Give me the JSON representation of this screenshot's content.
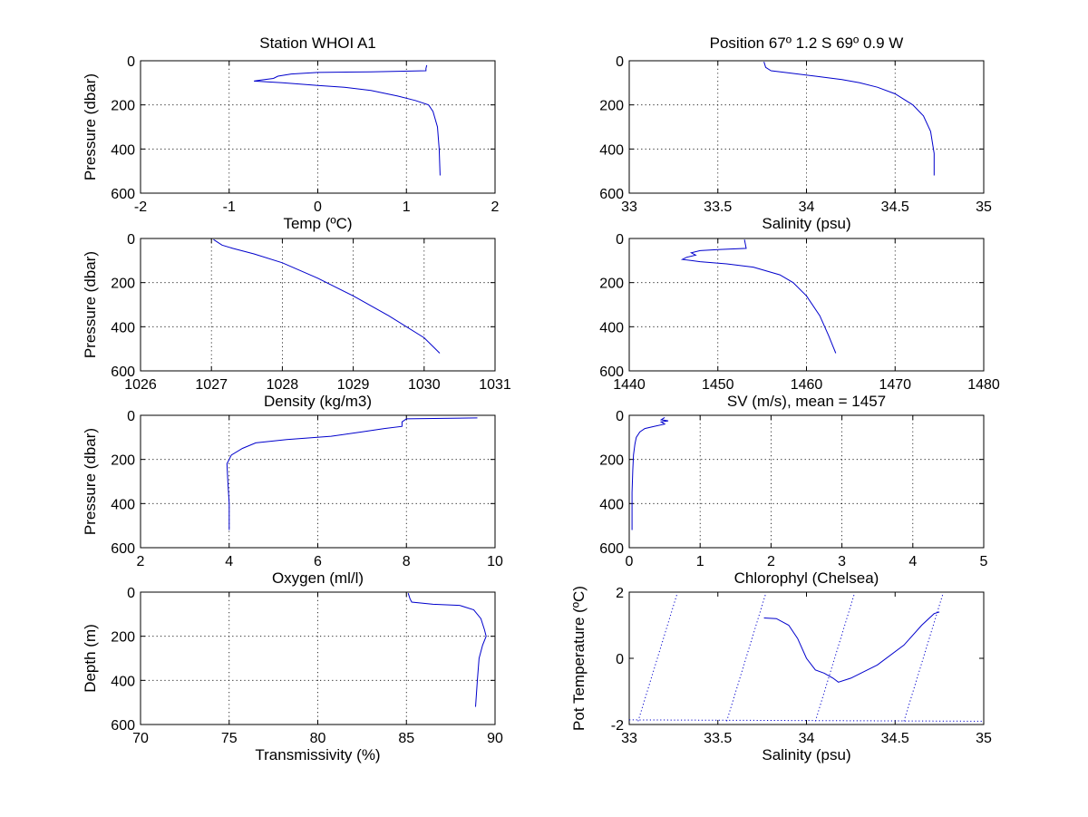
{
  "series_color": "#0000cc",
  "chart_data": [
    {
      "type": "line",
      "title": "Station  WHOI A1",
      "xlabel": "Temp (ºC)",
      "ylabel": "Pressure (dbar)",
      "xlim": [
        -2,
        2
      ],
      "ylim": [
        0,
        600
      ],
      "y_reversed": true,
      "grid": true,
      "xticks": [
        "-2",
        "-1",
        "0",
        "1",
        "2"
      ],
      "yticks": [
        "0",
        "200",
        "400",
        "600"
      ],
      "series": [
        {
          "values": [
            [
              1.23,
              20
            ],
            [
              1.22,
              35
            ],
            [
              1.22,
              45
            ],
            [
              0.6,
              50
            ],
            [
              0.0,
              53
            ],
            [
              -0.3,
              60
            ],
            [
              -0.45,
              70
            ],
            [
              -0.5,
              80
            ],
            [
              -0.65,
              88
            ],
            [
              -0.72,
              92
            ],
            [
              -0.4,
              100
            ],
            [
              0.0,
              112
            ],
            [
              0.3,
              120
            ],
            [
              0.6,
              135
            ],
            [
              0.9,
              160
            ],
            [
              1.1,
              180
            ],
            [
              1.25,
              200
            ],
            [
              1.3,
              230
            ],
            [
              1.35,
              300
            ],
            [
              1.37,
              400
            ],
            [
              1.38,
              520
            ]
          ]
        }
      ]
    },
    {
      "type": "line",
      "title": "Position 67º  1.2 S 69º  0.9 W",
      "xlabel": "Salinity (psu)",
      "ylabel": "",
      "xlim": [
        33,
        35
      ],
      "ylim": [
        0,
        600
      ],
      "y_reversed": true,
      "grid": true,
      "xticks": [
        "33",
        "33.5",
        "34",
        "34.5",
        "35"
      ],
      "yticks": [
        "0",
        "200",
        "400",
        "600"
      ],
      "series": [
        {
          "values": [
            [
              33.76,
              5
            ],
            [
              33.77,
              30
            ],
            [
              33.8,
              45
            ],
            [
              33.9,
              55
            ],
            [
              34.05,
              70
            ],
            [
              34.2,
              85
            ],
            [
              34.3,
              100
            ],
            [
              34.4,
              120
            ],
            [
              34.5,
              150
            ],
            [
              34.6,
              200
            ],
            [
              34.66,
              250
            ],
            [
              34.7,
              320
            ],
            [
              34.72,
              420
            ],
            [
              34.72,
              520
            ]
          ]
        }
      ]
    },
    {
      "type": "line",
      "title": "",
      "xlabel": "Density (kg/m3)",
      "ylabel": "Pressure (dbar)",
      "xlim": [
        1026,
        1031
      ],
      "ylim": [
        0,
        600
      ],
      "y_reversed": true,
      "grid": true,
      "xticks": [
        "1026",
        "1027",
        "1028",
        "1029",
        "1030",
        "1031"
      ],
      "yticks": [
        "0",
        "200",
        "400",
        "600"
      ],
      "series": [
        {
          "values": [
            [
              1027.03,
              5
            ],
            [
              1027.15,
              30
            ],
            [
              1027.3,
              45
            ],
            [
              1027.6,
              70
            ],
            [
              1028.0,
              110
            ],
            [
              1028.5,
              180
            ],
            [
              1029.0,
              260
            ],
            [
              1029.5,
              350
            ],
            [
              1030.0,
              450
            ],
            [
              1030.22,
              520
            ]
          ]
        }
      ]
    },
    {
      "type": "line",
      "title": "",
      "xlabel": "SV (m/s), mean = 1457",
      "ylabel": "",
      "xlim": [
        1440,
        1480
      ],
      "ylim": [
        0,
        600
      ],
      "y_reversed": true,
      "grid": true,
      "xticks": [
        "1440",
        "1450",
        "1460",
        "1470",
        "1480"
      ],
      "yticks": [
        "0",
        "200",
        "400",
        "600"
      ],
      "series": [
        {
          "values": [
            [
              1453,
              5
            ],
            [
              1453.2,
              45
            ],
            [
              1450,
              50
            ],
            [
              1448,
              55
            ],
            [
              1447,
              65
            ],
            [
              1447.5,
              75
            ],
            [
              1446.5,
              85
            ],
            [
              1446,
              95
            ],
            [
              1448,
              105
            ],
            [
              1451,
              115
            ],
            [
              1454,
              130
            ],
            [
              1457,
              165
            ],
            [
              1458.5,
              200
            ],
            [
              1460,
              260
            ],
            [
              1461.5,
              350
            ],
            [
              1462.5,
              440
            ],
            [
              1463.3,
              520
            ]
          ]
        }
      ]
    },
    {
      "type": "line",
      "title": "",
      "xlabel": "Oxygen (ml/l)",
      "ylabel": "Pressure (dbar)",
      "xlim": [
        2,
        10
      ],
      "ylim": [
        0,
        600
      ],
      "y_reversed": true,
      "grid": true,
      "xticks": [
        "2",
        "4",
        "6",
        "8",
        "10"
      ],
      "yticks": [
        "0",
        "200",
        "400",
        "600"
      ],
      "series": [
        {
          "values": [
            [
              9.6,
              12
            ],
            [
              8.0,
              16
            ],
            [
              7.9,
              30
            ],
            [
              7.9,
              50
            ],
            [
              7.5,
              60
            ],
            [
              7.0,
              75
            ],
            [
              6.3,
              95
            ],
            [
              5.3,
              110
            ],
            [
              4.6,
              125
            ],
            [
              4.3,
              150
            ],
            [
              4.05,
              180
            ],
            [
              3.95,
              220
            ],
            [
              3.97,
              300
            ],
            [
              4.0,
              400
            ],
            [
              4.0,
              520
            ]
          ]
        }
      ]
    },
    {
      "type": "line",
      "title": "",
      "xlabel": "Chlorophyl (Chelsea)",
      "ylabel": "",
      "xlim": [
        0,
        5
      ],
      "ylim": [
        0,
        600
      ],
      "y_reversed": true,
      "grid": true,
      "xticks": [
        "0",
        "1",
        "2",
        "3",
        "4",
        "5"
      ],
      "yticks": [
        "0",
        "200",
        "400",
        "600"
      ],
      "series": [
        {
          "values": [
            [
              0.5,
              10
            ],
            [
              0.45,
              20
            ],
            [
              0.55,
              25
            ],
            [
              0.45,
              30
            ],
            [
              0.5,
              40
            ],
            [
              0.35,
              50
            ],
            [
              0.22,
              60
            ],
            [
              0.15,
              75
            ],
            [
              0.1,
              100
            ],
            [
              0.08,
              130
            ],
            [
              0.06,
              180
            ],
            [
              0.05,
              250
            ],
            [
              0.04,
              350
            ],
            [
              0.04,
              520
            ]
          ]
        }
      ]
    },
    {
      "type": "line",
      "title": "",
      "xlabel": "Transmissivity (%)",
      "ylabel": "Depth (m)",
      "xlim": [
        70,
        90
      ],
      "ylim": [
        0,
        600
      ],
      "y_reversed": true,
      "grid": true,
      "xticks": [
        "70",
        "75",
        "80",
        "85",
        "90"
      ],
      "yticks": [
        "0",
        "200",
        "400",
        "600"
      ],
      "series": [
        {
          "values": [
            [
              85.1,
              5
            ],
            [
              85.2,
              30
            ],
            [
              85.3,
              45
            ],
            [
              86.5,
              55
            ],
            [
              88.0,
              60
            ],
            [
              88.8,
              80
            ],
            [
              89.2,
              120
            ],
            [
              89.4,
              170
            ],
            [
              89.5,
              200
            ],
            [
              89.3,
              240
            ],
            [
              89.1,
              300
            ],
            [
              89.0,
              400
            ],
            [
              88.9,
              520
            ]
          ]
        }
      ]
    },
    {
      "type": "line",
      "title": "",
      "xlabel": "Salinity (psu)",
      "ylabel": "Pot Temperature (ºC)",
      "xlim": [
        33,
        35
      ],
      "ylim": [
        -2,
        2
      ],
      "y_reversed": false,
      "grid": false,
      "xticks": [
        "33",
        "33.5",
        "34",
        "34.5",
        "35"
      ],
      "yticks": [
        "-2",
        "0",
        "2"
      ],
      "series": [
        {
          "values": [
            [
              33.76,
              1.22
            ],
            [
              33.83,
              1.2
            ],
            [
              33.9,
              1.0
            ],
            [
              33.95,
              0.6
            ],
            [
              34.0,
              0.0
            ],
            [
              34.05,
              -0.35
            ],
            [
              34.1,
              -0.45
            ],
            [
              34.15,
              -0.6
            ],
            [
              34.18,
              -0.72
            ],
            [
              34.25,
              -0.6
            ],
            [
              34.4,
              -0.2
            ],
            [
              34.55,
              0.4
            ],
            [
              34.65,
              1.0
            ],
            [
              34.72,
              1.35
            ],
            [
              34.75,
              1.4
            ]
          ]
        }
      ],
      "contours": [
        [
          [
            33.05,
            -1.9
          ],
          [
            33.27,
            1.95
          ]
        ],
        [
          [
            33.55,
            -1.9
          ],
          [
            33.77,
            1.95
          ]
        ],
        [
          [
            34.05,
            -1.9
          ],
          [
            34.27,
            1.95
          ]
        ],
        [
          [
            34.55,
            -1.9
          ],
          [
            34.77,
            1.95
          ]
        ],
        [
          [
            33.0,
            -1.86
          ],
          [
            35.0,
            -1.9
          ]
        ]
      ]
    }
  ]
}
